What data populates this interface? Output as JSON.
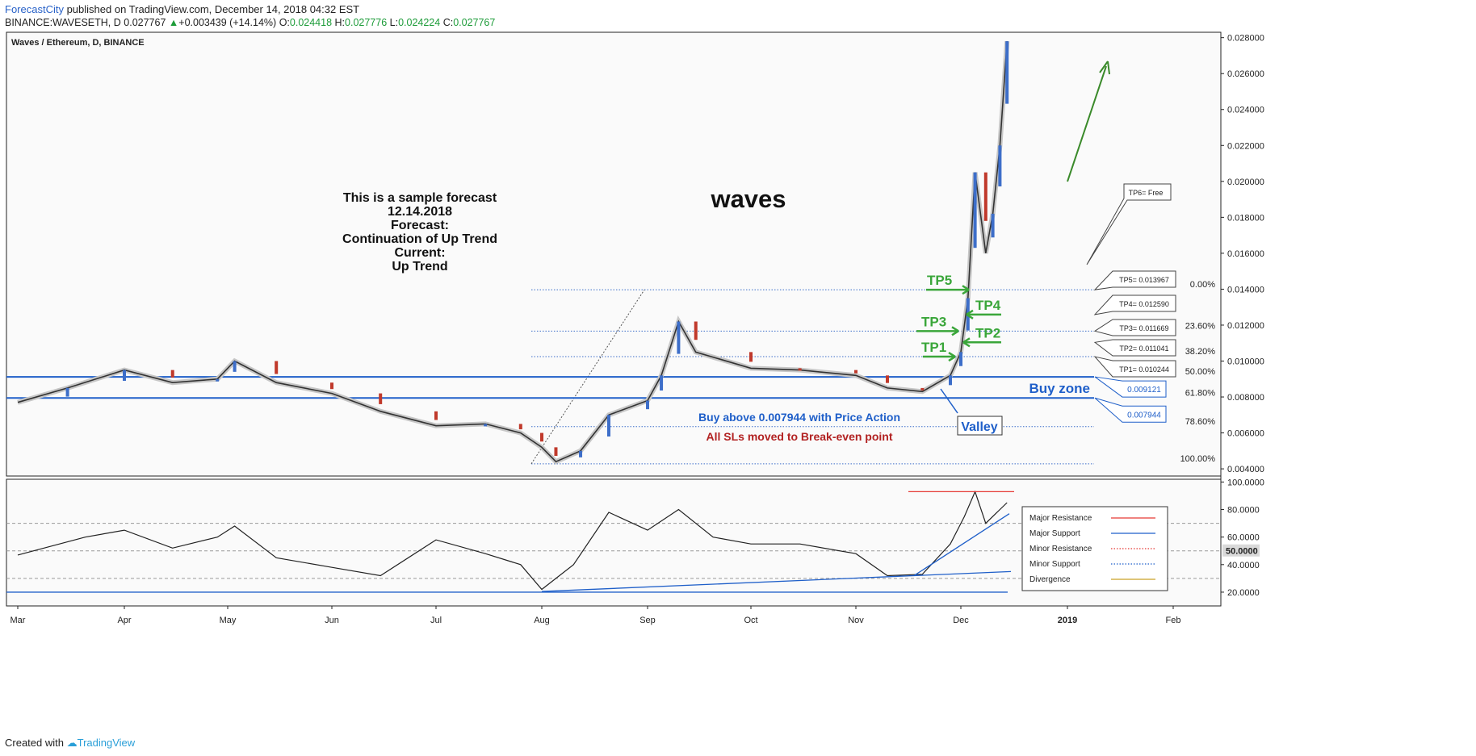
{
  "header": {
    "brand": "ForecastCity",
    "published": " published on TradingView.com, December 14, 2018 04:32 EST",
    "symbol": "BINANCE:WAVESETH, D",
    "last": "0.027767",
    "change": "+0.003439 (+14.14%)",
    "o_label": "O:",
    "o": "0.024418",
    "h_label": "H:",
    "h": "0.027776",
    "l_label": "L:",
    "l": "0.024224",
    "c_label": "C:",
    "c": "0.027767"
  },
  "footer": {
    "created": "Created with",
    "brand": "TradingView"
  },
  "chart_data": {
    "type": "line",
    "pair_label": "Waves / Ethereum, D, BINANCE",
    "x_ticks": [
      "Mar",
      "Apr",
      "May",
      "Jun",
      "Jul",
      "Aug",
      "Sep",
      "Oct",
      "Nov",
      "Dec",
      "2019",
      "Feb"
    ],
    "y_ticks": [
      "0.028000",
      "0.026000",
      "0.024000",
      "0.022000",
      "0.020000",
      "0.018000",
      "0.016000",
      "0.014000",
      "0.012000",
      "0.010000",
      "0.008000",
      "0.006000",
      "0.004000"
    ],
    "ylim": [
      0.0036,
      0.0283
    ],
    "price_path": [
      [
        "Mar 1",
        0.0077
      ],
      [
        "Mar 15",
        0.0085
      ],
      [
        "Apr 1",
        0.0095
      ],
      [
        "Apr 15",
        0.0088
      ],
      [
        "Apr 28",
        0.009
      ],
      [
        "May 3",
        0.01
      ],
      [
        "May 15",
        0.0088
      ],
      [
        "Jun 1",
        0.0082
      ],
      [
        "Jun 15",
        0.0072
      ],
      [
        "Jul 1",
        0.0064
      ],
      [
        "Jul 15",
        0.0065
      ],
      [
        "Jul 25",
        0.006
      ],
      [
        "Aug 1",
        0.0052
      ],
      [
        "Aug 5",
        0.0044
      ],
      [
        "Aug 12",
        0.005
      ],
      [
        "Aug 20",
        0.007
      ],
      [
        "Sep 1",
        0.0078
      ],
      [
        "Sep 5",
        0.0092
      ],
      [
        "Sep 10",
        0.0122
      ],
      [
        "Sep 15",
        0.0105
      ],
      [
        "Oct 1",
        0.0096
      ],
      [
        "Oct 15",
        0.0095
      ],
      [
        "Nov 1",
        0.0092
      ],
      [
        "Nov 10",
        0.0085
      ],
      [
        "Nov 20",
        0.0083
      ],
      [
        "Nov 28",
        0.0092
      ],
      [
        "Dec 1",
        0.0105
      ],
      [
        "Dec 3",
        0.0135
      ],
      [
        "Dec 5",
        0.0205
      ],
      [
        "Dec 8",
        0.016
      ],
      [
        "Dec 10",
        0.0182
      ],
      [
        "Dec 12",
        0.022
      ],
      [
        "Dec 14",
        0.0278
      ]
    ],
    "fib_levels": [
      {
        "label": "0.00%",
        "value": 0.013967
      },
      {
        "label": "23.60%",
        "value": 0.011669
      },
      {
        "label": "38.20%",
        "value": 0.010244
      },
      {
        "label": "50.00%",
        "value": 0.009121
      },
      {
        "label": "61.80%",
        "value": 0.007944
      },
      {
        "label": "78.60%",
        "value": 0.00635
      },
      {
        "label": "100.00%",
        "value": 0.00428
      }
    ],
    "take_profits": [
      {
        "name": "TP1",
        "box": "TP1= 0.010244",
        "value": 0.010244
      },
      {
        "name": "TP2",
        "box": "TP2= 0.011041",
        "value": 0.011041
      },
      {
        "name": "TP3",
        "box": "TP3= 0.011669",
        "value": 0.011669
      },
      {
        "name": "TP4",
        "box": "TP4= 0.012590",
        "value": 0.01259
      },
      {
        "name": "TP5",
        "box": "TP5= 0.013967",
        "value": 0.013967
      }
    ],
    "tp6": "TP6= Free",
    "buy_zone": {
      "label": "Buy zone",
      "upper": 0.009121,
      "lower": 0.007944,
      "upper_text": "0.009121",
      "lower_text": "0.007944"
    },
    "annotations": {
      "forecast": [
        "This is a sample forecast",
        "12.14.2018",
        "Forecast:",
        "Continuation of Up Trend",
        "Current:",
        "Up Trend"
      ],
      "big_label": "waves",
      "buy_note": "Buy above 0.007944 with Price Action",
      "sl_note": "All SLs moved to Break-even point",
      "valley": "Valley"
    },
    "indicator": {
      "y_ticks": [
        "100.0000",
        "80.0000",
        "60.0000",
        "40.0000",
        "20.0000"
      ],
      "current": "50.0000",
      "ylim": [
        10,
        102
      ],
      "levels": [
        70,
        50,
        30
      ],
      "rsi_path": [
        [
          "Mar 1",
          47
        ],
        [
          "Mar 20",
          60
        ],
        [
          "Apr 1",
          65
        ],
        [
          "Apr 15",
          52
        ],
        [
          "Apr 28",
          60
        ],
        [
          "May 3",
          68
        ],
        [
          "May 15",
          45
        ],
        [
          "Jun 1",
          38
        ],
        [
          "Jun 15",
          32
        ],
        [
          "Jul 1",
          58
        ],
        [
          "Jul 15",
          48
        ],
        [
          "Jul 25",
          40
        ],
        [
          "Aug 1",
          22
        ],
        [
          "Aug 10",
          40
        ],
        [
          "Aug 20",
          78
        ],
        [
          "Sep 1",
          65
        ],
        [
          "Sep 10",
          80
        ],
        [
          "Sep 20",
          60
        ],
        [
          "Oct 1",
          55
        ],
        [
          "Oct 15",
          55
        ],
        [
          "Nov 1",
          48
        ],
        [
          "Nov 10",
          32
        ],
        [
          "Nov 20",
          33
        ],
        [
          "Nov 28",
          55
        ],
        [
          "Dec 2",
          75
        ],
        [
          "Dec 5",
          93
        ],
        [
          "Dec 8",
          70
        ],
        [
          "Dec 12",
          80
        ],
        [
          "Dec 14",
          85
        ]
      ],
      "legend": [
        {
          "label": "Major Resistance",
          "color": "#e53935",
          "style": "solid"
        },
        {
          "label": "Major Support",
          "color": "#1f5fc9",
          "style": "solid"
        },
        {
          "label": "Minor Resistance",
          "color": "#e53935",
          "style": "dotted"
        },
        {
          "label": "Minor Support",
          "color": "#1f5fc9",
          "style": "dotted"
        },
        {
          "label": "Divergence",
          "color": "#c9a227",
          "style": "solid"
        }
      ]
    }
  }
}
